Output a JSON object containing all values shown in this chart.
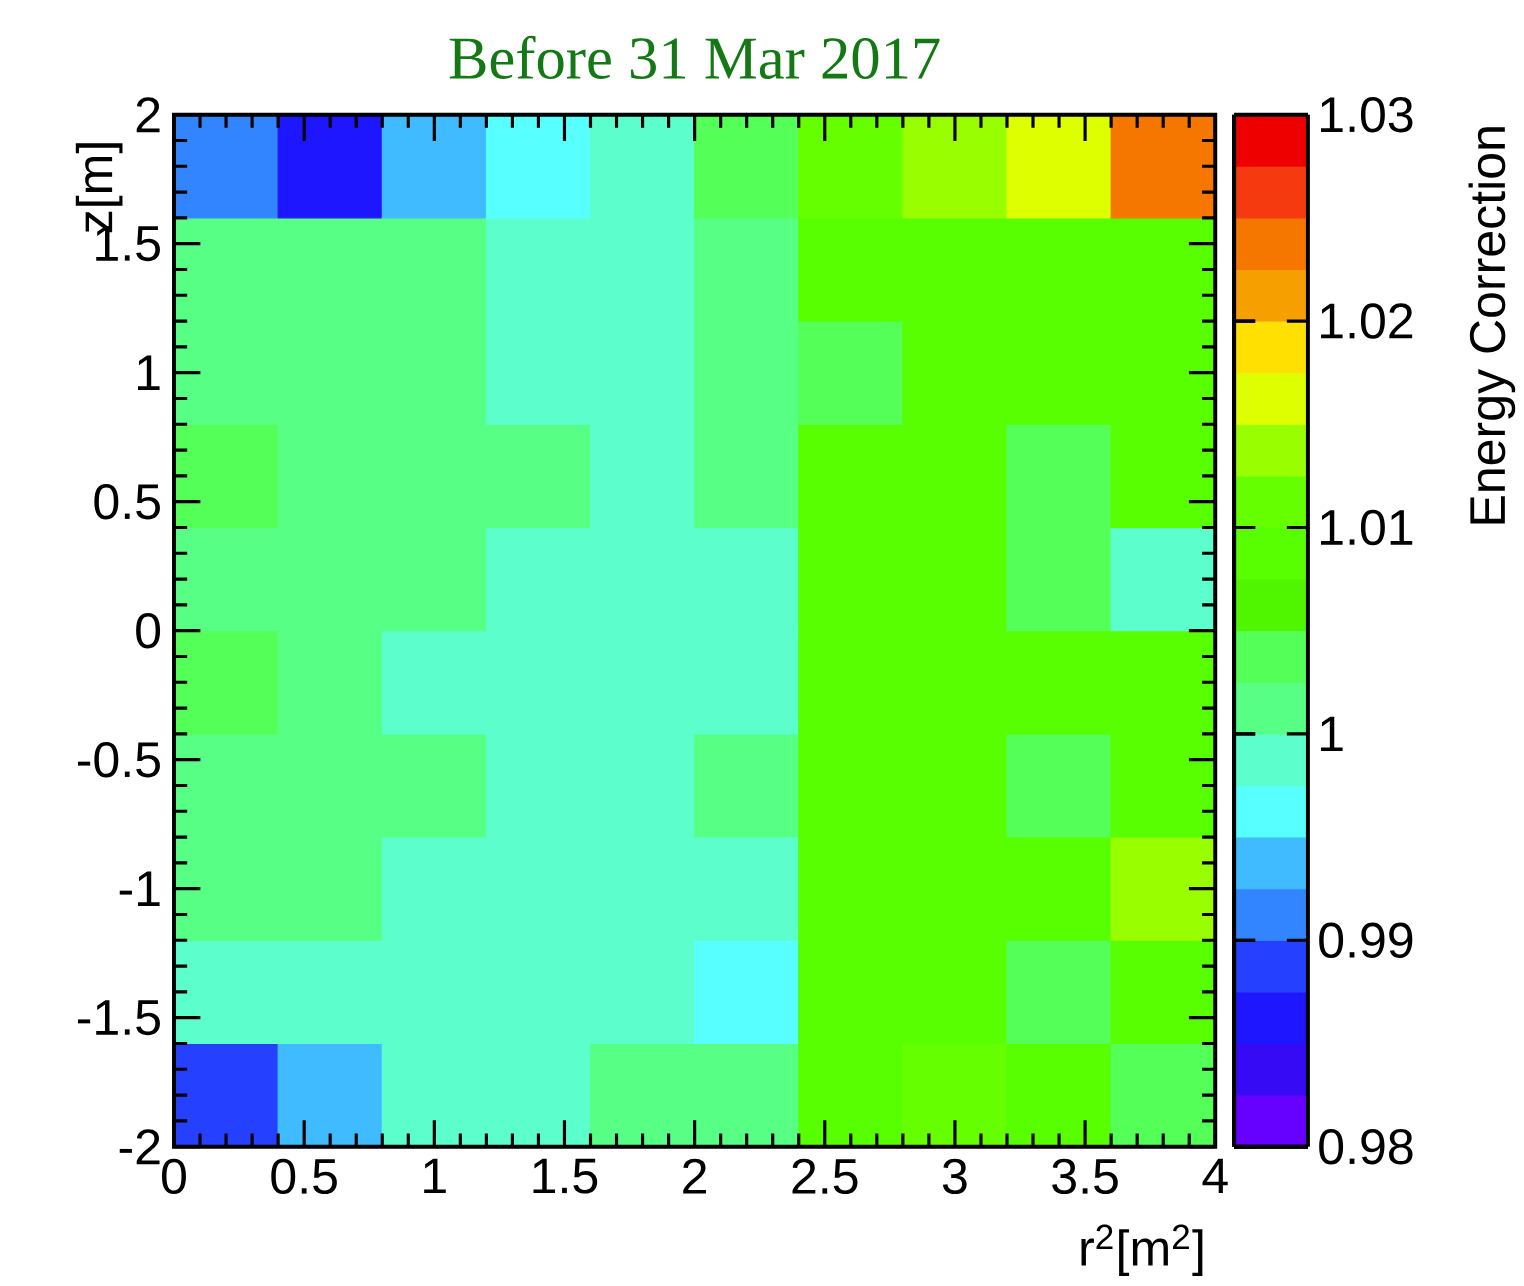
{
  "chart_data": {
    "type": "heatmap",
    "title": "Before 31 Mar 2017",
    "xlabel": "r$^{2}$[m$^{2}$]",
    "ylabel": "z[m]",
    "clabel": "Energy Correction",
    "xlim": [
      0,
      4
    ],
    "ylim": [
      -2,
      2
    ],
    "xticks": [
      0,
      0.5,
      1,
      1.5,
      2,
      2.5,
      3,
      3.5,
      4
    ],
    "yticks": [
      -2,
      -1.5,
      -1,
      -0.5,
      0,
      0.5,
      1,
      1.5,
      2
    ],
    "clim": [
      0.98,
      1.03
    ],
    "cticks": [
      0.98,
      0.99,
      1,
      1.01,
      1.02,
      1.03
    ],
    "cells": [
      [
        0.99125,
        0.98625,
        0.99375,
        0.99625,
        0.99875,
        1.00375,
        1.01125,
        1.01375,
        1.01625,
        1.02375
      ],
      [
        1.00125,
        1.00125,
        1.00125,
        0.99875,
        0.99875,
        1.00125,
        1.00875,
        1.00875,
        1.00875,
        1.00875
      ],
      [
        1.00125,
        1.00125,
        1.00125,
        0.99875,
        0.99875,
        1.00125,
        1.00375,
        1.00875,
        1.00875,
        1.00875
      ],
      [
        1.00375,
        1.00125,
        1.00125,
        1.00125,
        0.99875,
        1.00125,
        1.00875,
        1.00875,
        1.00375,
        1.00875
      ],
      [
        1.00125,
        1.00125,
        1.00125,
        0.99875,
        0.99875,
        0.99875,
        1.00875,
        1.00875,
        1.00375,
        0.99875
      ],
      [
        1.00375,
        1.00125,
        0.99875,
        0.99875,
        0.99875,
        0.99875,
        1.00875,
        1.00875,
        1.00875,
        1.00875
      ],
      [
        1.00125,
        1.00125,
        1.00125,
        0.99875,
        0.99875,
        1.00125,
        1.00875,
        1.00875,
        1.00375,
        1.00875
      ],
      [
        1.00125,
        1.00125,
        0.99875,
        0.99875,
        0.99875,
        0.99875,
        1.00875,
        1.00875,
        1.00875,
        1.01375
      ],
      [
        0.99875,
        0.99875,
        0.99875,
        0.99875,
        0.99875,
        0.99625,
        1.00875,
        1.00875,
        1.00375,
        1.00875
      ],
      [
        0.98875,
        0.99375,
        0.99875,
        0.99875,
        1.00125,
        1.00125,
        1.00875,
        1.01125,
        1.00875,
        1.00375
      ]
    ]
  }
}
